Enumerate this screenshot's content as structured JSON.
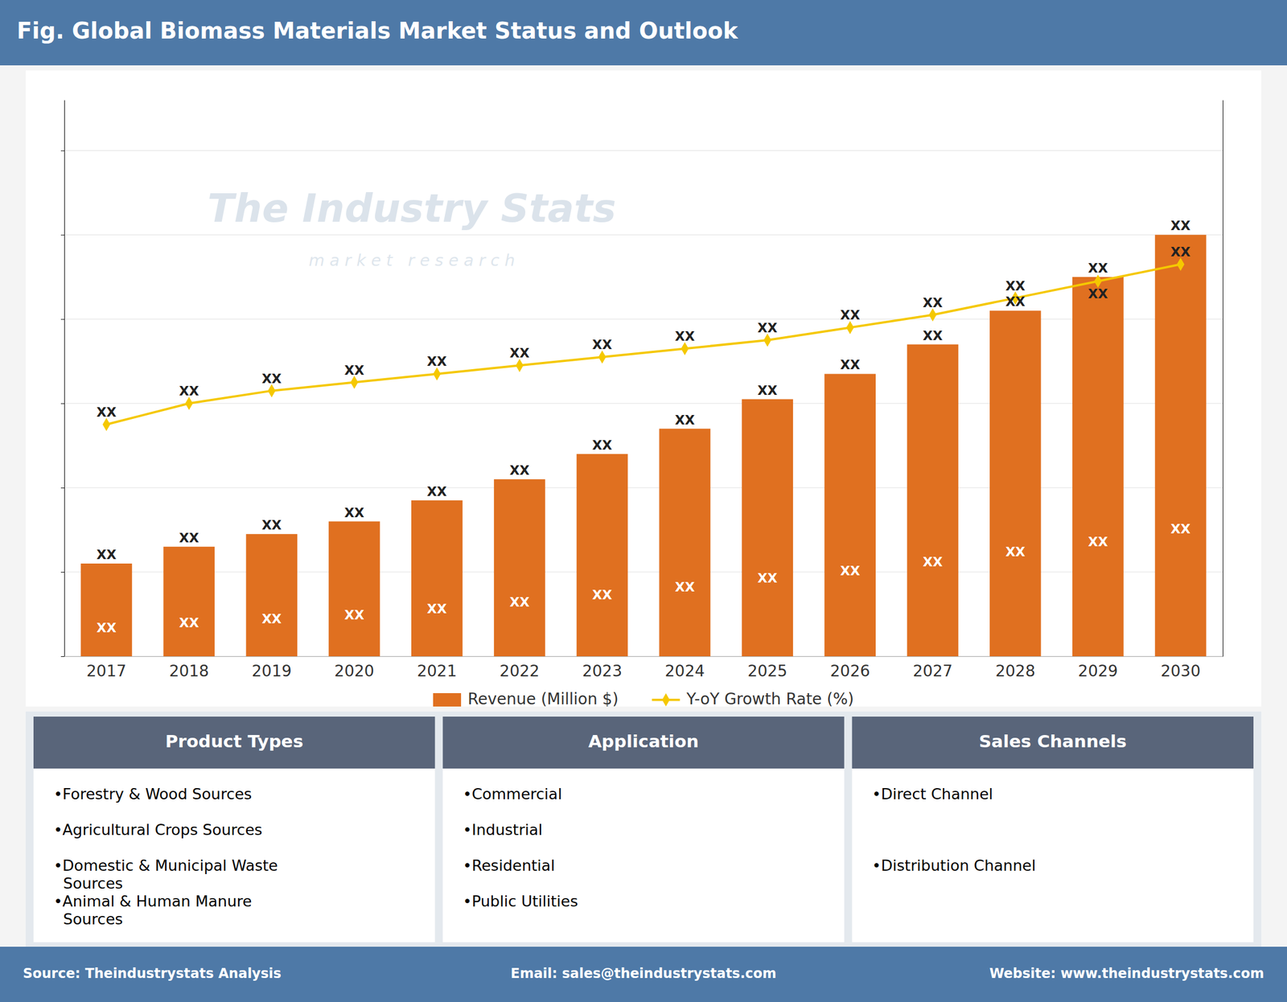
{
  "chart_data": {
    "type": "bar",
    "title": "Fig. Global Biomass Materials Market Status and Outlook",
    "categories": [
      "2017",
      "2018",
      "2019",
      "2020",
      "2021",
      "2022",
      "2023",
      "2024",
      "2025",
      "2026",
      "2027",
      "2028",
      "2029",
      "2030"
    ],
    "series": [
      {
        "name": "Revenue (Million $)",
        "type": "bar",
        "color": "#e07020",
        "values": [
          22,
          26,
          29,
          32,
          37,
          42,
          48,
          54,
          61,
          67,
          74,
          82,
          90,
          100
        ],
        "value_labels": [
          "XX",
          "XX",
          "XX",
          "XX",
          "XX",
          "XX",
          "XX",
          "XX",
          "XX",
          "XX",
          "XX",
          "XX",
          "XX",
          "XX"
        ]
      },
      {
        "name": "Y-oY Growth Rate (%)",
        "type": "line",
        "color": "#f5c800",
        "marker": "diamond",
        "axis": "y2",
        "values": [
          55,
          60,
          63,
          65,
          67,
          69,
          71,
          73,
          75,
          78,
          81,
          85,
          89,
          93
        ],
        "value_labels": [
          "XX",
          "XX",
          "XX",
          "XX",
          "XX",
          "XX",
          "XX",
          "XX",
          "XX",
          "XX",
          "XX",
          "XX",
          "XX",
          "XX"
        ]
      }
    ],
    "ylim": [
      0,
      132
    ],
    "yticks": [
      0,
      20,
      40,
      60,
      80,
      100,
      120
    ],
    "y2lim": [
      0,
      132
    ],
    "grid": true,
    "legend": "bottom",
    "tick_labels": "x",
    "annotations": [
      "The Industry Stats",
      "m a r k e t   r e s e a r c h"
    ]
  },
  "panels": [
    {
      "title": "Product Types",
      "items": [
        "•Forestry & Wood Sources",
        "•Agricultural Crops Sources",
        "•Domestic & Municipal Waste\n  Sources",
        "•Animal & Human Manure\n  Sources"
      ]
    },
    {
      "title": "Application",
      "items": [
        "•Commercial",
        "•Industrial",
        "•Residential",
        "•Public Utilities"
      ]
    },
    {
      "title": "Sales Channels",
      "items": [
        "•Direct Channel",
        "•Distribution Channel"
      ]
    }
  ],
  "footer": [
    "Source: Theindustrystats Analysis",
    "Email: sales@theindustrystats.com",
    "Website: www.theindustrystats.com"
  ]
}
